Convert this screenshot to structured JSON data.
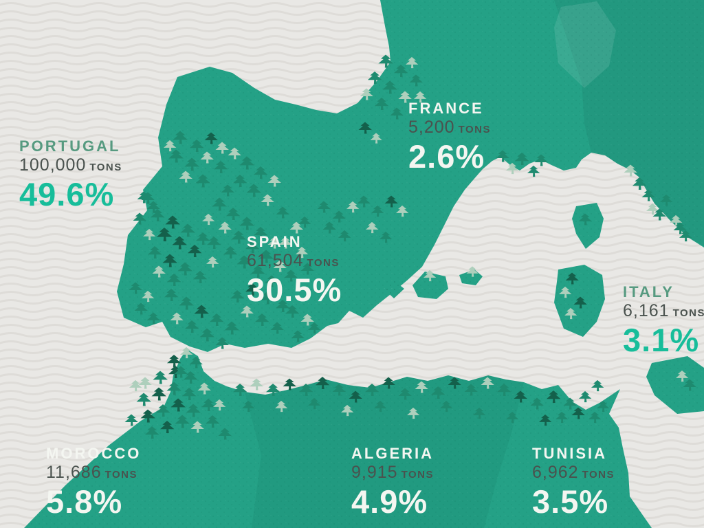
{
  "map": {
    "description_icon": "cork-oak-tree-icon",
    "countries": [
      {
        "id": "portugal",
        "name": "PORTUGAL",
        "tons": "100,000",
        "unit": "TONS",
        "percent": "49.6%",
        "tons_value": 100000,
        "percent_value": 49.6,
        "theme": "sea"
      },
      {
        "id": "spain",
        "name": "SPAIN",
        "tons": "61,504",
        "unit": "TONS",
        "percent": "30.5%",
        "tons_value": 61504,
        "percent_value": 30.5,
        "theme": "land"
      },
      {
        "id": "france",
        "name": "FRANCE",
        "tons": "5,200",
        "unit": "TONS",
        "percent": "2.6%",
        "tons_value": 5200,
        "percent_value": 2.6,
        "theme": "land"
      },
      {
        "id": "italy",
        "name": "ITALY",
        "tons": "6,161",
        "unit": "TONS",
        "percent": "3.1%",
        "tons_value": 6161,
        "percent_value": 3.1,
        "theme": "sea"
      },
      {
        "id": "morocco",
        "name": "MOROCCO",
        "tons": "11,686",
        "unit": "TONS",
        "percent": "5.8%",
        "tons_value": 11686,
        "percent_value": 5.8,
        "theme": "land"
      },
      {
        "id": "algeria",
        "name": "ALGERIA",
        "tons": "9,915",
        "unit": "TONS",
        "percent": "4.9%",
        "tons_value": 9915,
        "percent_value": 4.9,
        "theme": "land"
      },
      {
        "id": "tunisia",
        "name": "TUNISIA",
        "tons": "6,962",
        "unit": "TONS",
        "percent": "3.5%",
        "tons_value": 6962,
        "percent_value": 3.5,
        "theme": "land"
      }
    ],
    "colors": {
      "sea": "#e9e8e5",
      "wave_line": "#dedcd8",
      "land": "#24a186",
      "tree_dark": "#14604b",
      "tree_medium": "#1e8a6f",
      "tree_light": "#aecfbc",
      "accent_teal": "#17bd9a",
      "label_green": "#569a80",
      "label_dark": "#4a524e",
      "label_light": "#f4f6f1"
    }
  }
}
